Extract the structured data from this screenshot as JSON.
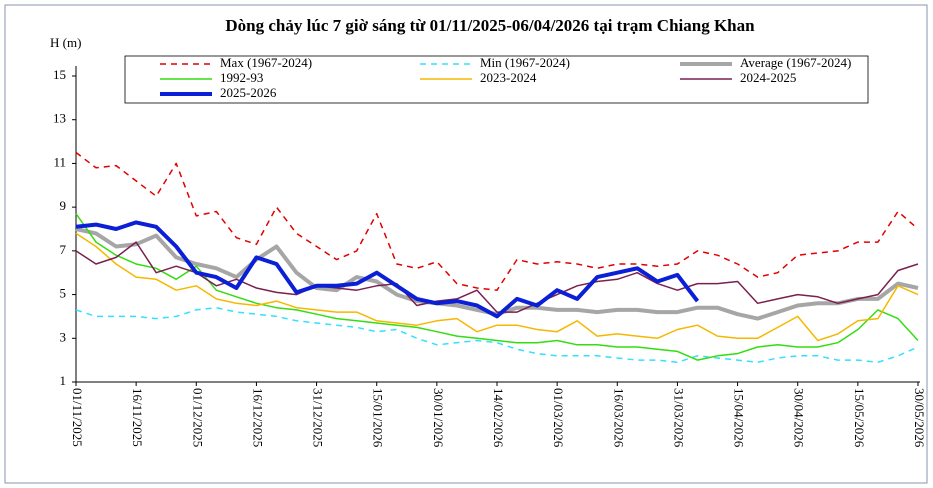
{
  "chart_data": {
    "type": "line",
    "title": "Dòng chảy lúc 7 giờ sáng từ 01/11/2025-06/04/2026 tại trạm Chiang Khan",
    "y_label": "H (m)",
    "ylim": [
      1,
      15
    ],
    "yticks": [
      1,
      3,
      5,
      7,
      9,
      11,
      13,
      15
    ],
    "xlim": [
      "01/11/2025",
      "30/05/2026"
    ],
    "xticks": [
      "01/11/2025",
      "16/11/2025",
      "01/12/2025",
      "16/12/2025",
      "31/12/2025",
      "15/01/2026",
      "30/01/2026",
      "14/02/2026",
      "01/03/2026",
      "16/03/2026",
      "31/03/2026",
      "15/04/2026",
      "30/04/2026",
      "15/05/2026",
      "30/05/2026"
    ],
    "x": [
      "01/11/2025",
      "06/11/2025",
      "11/11/2025",
      "16/11/2025",
      "21/11/2025",
      "26/11/2025",
      "01/12/2025",
      "06/12/2025",
      "11/12/2025",
      "16/12/2025",
      "21/12/2025",
      "26/12/2025",
      "31/12/2025",
      "05/01/2026",
      "10/01/2026",
      "15/01/2026",
      "20/01/2026",
      "25/01/2026",
      "30/01/2026",
      "04/02/2026",
      "09/02/2026",
      "14/02/2026",
      "19/02/2026",
      "24/02/2026",
      "01/03/2026",
      "06/03/2026",
      "11/03/2026",
      "16/03/2026",
      "21/03/2026",
      "26/03/2026",
      "31/03/2026",
      "05/04/2026",
      "10/04/2026",
      "15/04/2026",
      "20/04/2026",
      "25/04/2026",
      "30/04/2026",
      "05/05/2026",
      "10/05/2026",
      "15/05/2026",
      "20/05/2026",
      "25/05/2026",
      "30/05/2026"
    ],
    "series": [
      {
        "name": "Max (1967-2024)",
        "color": "#e00000",
        "dashed": true,
        "width": 1.5,
        "values": [
          11.5,
          10.8,
          10.9,
          10.2,
          9.5,
          11.0,
          8.6,
          8.8,
          7.6,
          7.3,
          9.0,
          7.8,
          7.2,
          6.6,
          7.0,
          8.7,
          6.4,
          6.2,
          6.5,
          5.5,
          5.3,
          5.2,
          6.6,
          6.4,
          6.5,
          6.4,
          6.2,
          6.4,
          6.4,
          6.3,
          6.4,
          7.0,
          6.8,
          6.4,
          5.8,
          6.0,
          6.8,
          6.9,
          7.0,
          7.4,
          7.4,
          8.8,
          8.0
        ]
      },
      {
        "name": "Min (1967-2024)",
        "color": "#33e0ff",
        "dashed": true,
        "width": 1.5,
        "values": [
          4.3,
          4.0,
          4.0,
          4.0,
          3.9,
          4.0,
          4.3,
          4.4,
          4.2,
          4.1,
          4.0,
          3.8,
          3.7,
          3.6,
          3.5,
          3.3,
          3.4,
          3.0,
          2.7,
          2.8,
          2.9,
          2.8,
          2.5,
          2.3,
          2.2,
          2.2,
          2.2,
          2.1,
          2.0,
          2.0,
          1.9,
          2.2,
          2.1,
          2.0,
          1.9,
          2.1,
          2.2,
          2.2,
          2.0,
          2.0,
          1.9,
          2.2,
          2.6
        ]
      },
      {
        "name": "Average (1967-2024)",
        "color": "#a6a6a6",
        "dashed": false,
        "width": 4,
        "values": [
          8.0,
          7.8,
          7.2,
          7.3,
          7.7,
          6.7,
          6.4,
          6.2,
          5.8,
          6.6,
          7.2,
          6.0,
          5.3,
          5.2,
          5.8,
          5.6,
          5.0,
          4.7,
          4.6,
          4.5,
          4.3,
          4.1,
          4.4,
          4.4,
          4.3,
          4.3,
          4.2,
          4.3,
          4.3,
          4.2,
          4.2,
          4.4,
          4.4,
          4.1,
          3.9,
          4.2,
          4.5,
          4.6,
          4.6,
          4.8,
          4.8,
          5.5,
          5.3
        ]
      },
      {
        "name": "1992-93",
        "color": "#33dd11",
        "dashed": false,
        "width": 1.5,
        "values": [
          8.7,
          7.4,
          6.8,
          6.4,
          6.2,
          5.7,
          6.3,
          5.2,
          4.9,
          4.6,
          4.4,
          4.3,
          4.1,
          3.9,
          3.8,
          3.7,
          3.6,
          3.5,
          3.3,
          3.1,
          3.0,
          2.9,
          2.8,
          2.8,
          2.9,
          2.7,
          2.7,
          2.6,
          2.6,
          2.5,
          2.4,
          2.0,
          2.2,
          2.3,
          2.6,
          2.7,
          2.6,
          2.6,
          2.8,
          3.4,
          4.3,
          3.9,
          2.9
        ]
      },
      {
        "name": "2023-2024",
        "color": "#f5b800",
        "dashed": false,
        "width": 1.5,
        "values": [
          7.8,
          7.2,
          6.4,
          5.8,
          5.7,
          5.2,
          5.4,
          4.8,
          4.6,
          4.5,
          4.7,
          4.4,
          4.3,
          4.2,
          4.2,
          3.8,
          3.7,
          3.6,
          3.8,
          3.9,
          3.3,
          3.6,
          3.6,
          3.4,
          3.3,
          3.8,
          3.1,
          3.2,
          3.1,
          3.0,
          3.4,
          3.6,
          3.1,
          3.0,
          3.0,
          3.5,
          4.0,
          2.9,
          3.2,
          3.8,
          3.9,
          5.4,
          5.0
        ]
      },
      {
        "name": "2024-2025",
        "color": "#7a2050",
        "dashed": false,
        "width": 1.5,
        "values": [
          7.0,
          6.4,
          6.7,
          7.4,
          6.0,
          6.3,
          6.0,
          5.4,
          5.7,
          5.3,
          5.1,
          5.0,
          5.4,
          5.3,
          5.2,
          5.4,
          5.5,
          4.5,
          4.7,
          4.8,
          5.2,
          4.2,
          4.2,
          4.6,
          5.0,
          5.4,
          5.6,
          5.7,
          6.0,
          5.5,
          5.2,
          5.5,
          5.5,
          5.6,
          4.6,
          4.8,
          5.0,
          4.9,
          4.6,
          4.8,
          5.0,
          6.1,
          6.4
        ]
      },
      {
        "name": "2025-2026",
        "color": "#0a1fd6",
        "dashed": false,
        "width": 4,
        "values": [
          8.1,
          8.2,
          8.0,
          8.3,
          8.1,
          7.2,
          6.0,
          5.8,
          5.3,
          6.7,
          6.4,
          5.1,
          5.4,
          5.4,
          5.5,
          6.0,
          5.4,
          4.8,
          4.6,
          4.7,
          4.5,
          4.0,
          4.8,
          4.5,
          5.2,
          4.8,
          5.8,
          6.0,
          6.2,
          5.6,
          5.9,
          4.7,
          null,
          null,
          null,
          null,
          null,
          null,
          null,
          null,
          null,
          null,
          null
        ]
      }
    ]
  }
}
